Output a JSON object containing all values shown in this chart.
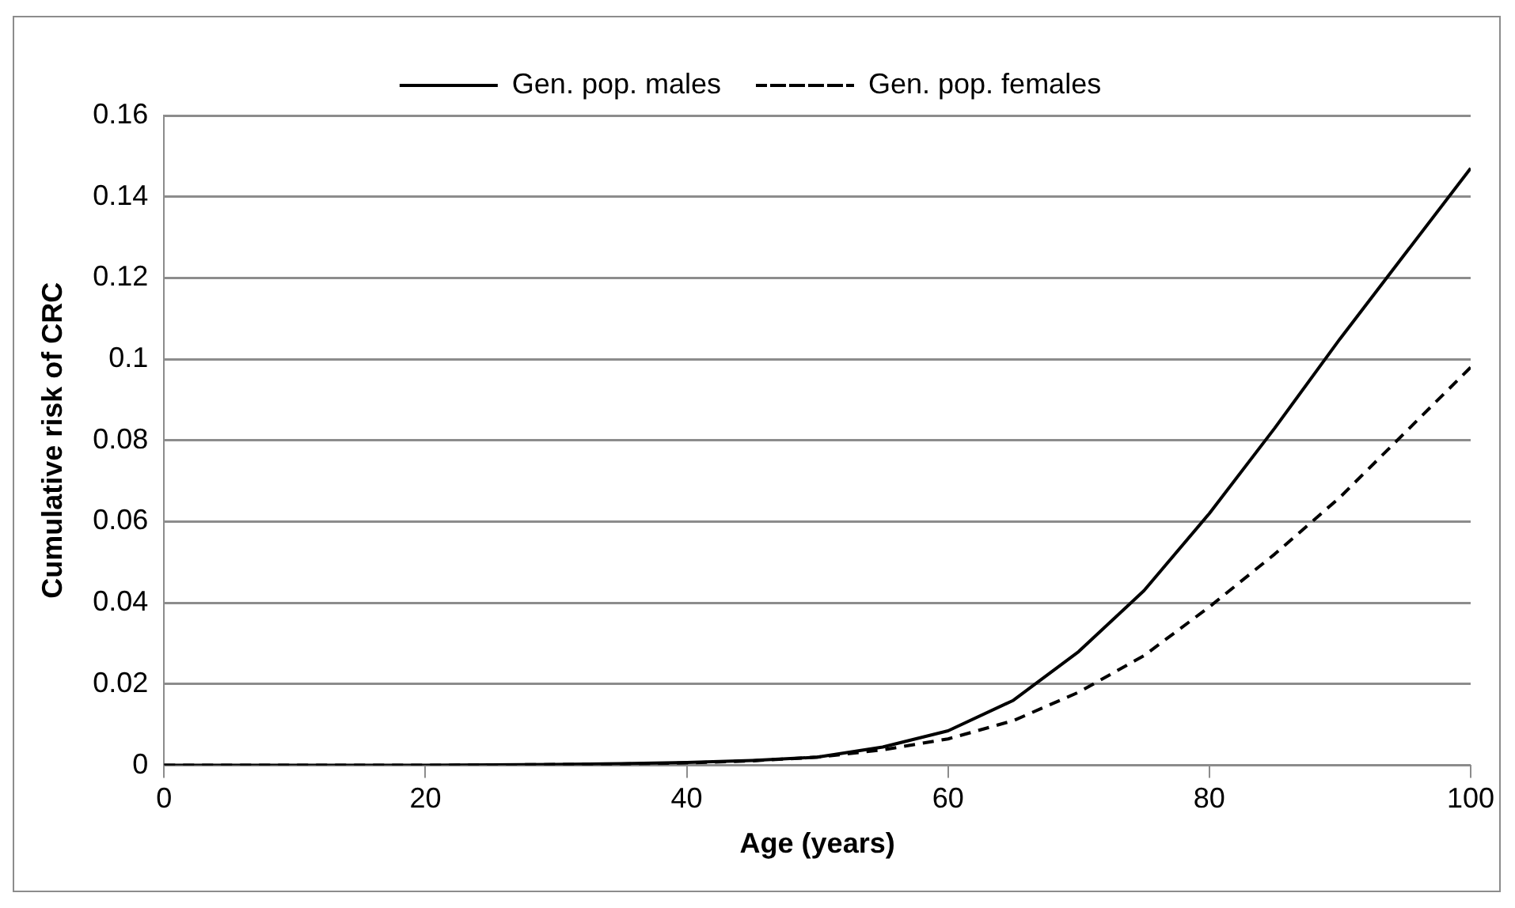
{
  "chart_data": {
    "type": "line",
    "xlabel": "Age (years)",
    "ylabel": "Cumulative risk of CRC",
    "x": [
      0,
      5,
      10,
      15,
      20,
      25,
      30,
      35,
      40,
      45,
      50,
      55,
      60,
      65,
      70,
      75,
      80,
      85,
      90,
      95,
      100
    ],
    "series": [
      {
        "name": "Gen. pop. males",
        "color": "#000000",
        "line_style": "solid",
        "values": [
          0,
          0,
          0,
          0,
          0,
          0.0001,
          0.0002,
          0.0004,
          0.0007,
          0.0012,
          0.002,
          0.0045,
          0.0085,
          0.016,
          0.028,
          0.043,
          0.062,
          0.083,
          0.105,
          0.126,
          0.147
        ]
      },
      {
        "name": "Gen. pop. females",
        "color": "#000000",
        "line_style": "dashed",
        "values": [
          0,
          0,
          0,
          0,
          0,
          0.0001,
          0.0002,
          0.0003,
          0.0006,
          0.0011,
          0.002,
          0.0038,
          0.0065,
          0.011,
          0.018,
          0.027,
          0.039,
          0.052,
          0.066,
          0.082,
          0.098
        ]
      }
    ],
    "xlim": [
      0,
      100
    ],
    "xticks": [
      0,
      20,
      40,
      60,
      80,
      100
    ],
    "ylim": [
      0,
      0.16
    ],
    "yticks": [
      0,
      0.02,
      0.04,
      0.06,
      0.08,
      0.1,
      0.12,
      0.14,
      0.16
    ],
    "grid": "y",
    "legend": "top",
    "marker": "none"
  }
}
